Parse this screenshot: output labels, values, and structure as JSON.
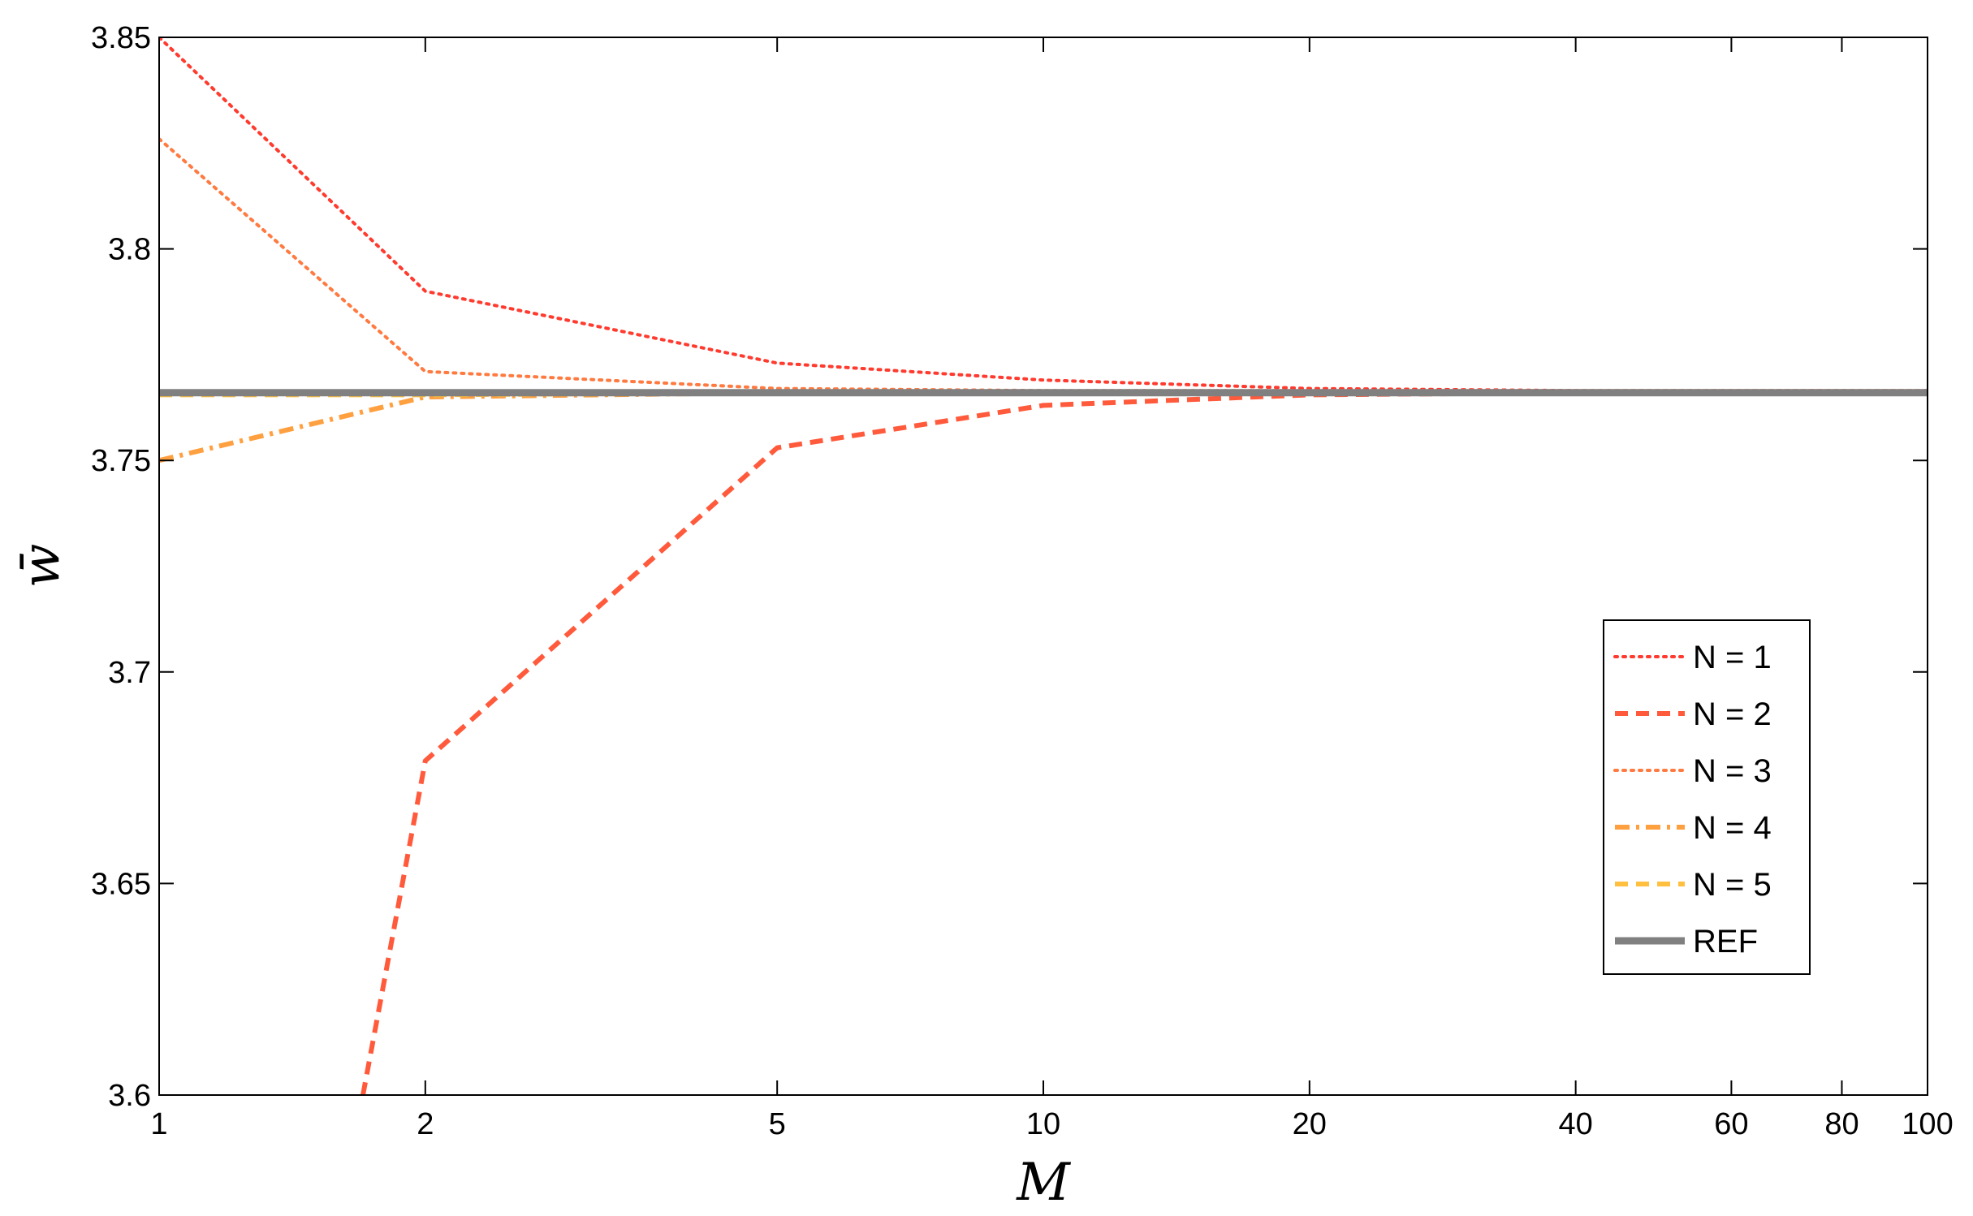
{
  "chart_data": {
    "type": "line",
    "title": "",
    "xlabel": "M",
    "ylabel": "w̄",
    "xscale": "log",
    "xlim": [
      1,
      100
    ],
    "ylim": [
      3.6,
      3.85
    ],
    "x_ticks": [
      1,
      2,
      5,
      10,
      20,
      40,
      60,
      80,
      100
    ],
    "x_tick_labels": [
      "1",
      "2",
      "5",
      "10",
      "20",
      "40",
      "60",
      "80",
      "100"
    ],
    "y_ticks": [
      3.6,
      3.65,
      3.7,
      3.75,
      3.8,
      3.85
    ],
    "y_tick_labels": [
      "3.6",
      "3.65",
      "3.7",
      "3.75",
      "3.8",
      "3.85"
    ],
    "grid": false,
    "legend_position": "right",
    "series": [
      {
        "name": "N = 1",
        "color": "#ff3a2e",
        "style": "dotted",
        "points": [
          [
            1,
            3.85
          ],
          [
            2,
            3.79
          ],
          [
            5,
            3.773
          ],
          [
            10,
            3.769
          ],
          [
            20,
            3.767
          ],
          [
            40,
            3.7665
          ],
          [
            100,
            3.7665
          ]
        ]
      },
      {
        "name": "N = 2",
        "color": "#ff5a3c",
        "style": "dashed",
        "points": [
          [
            1.7,
            3.6
          ],
          [
            2,
            3.679
          ],
          [
            5,
            3.753
          ],
          [
            10,
            3.763
          ],
          [
            20,
            3.7655
          ],
          [
            40,
            3.766
          ],
          [
            100,
            3.766
          ]
        ]
      },
      {
        "name": "N = 3",
        "color": "#ff7a40",
        "style": "dotted",
        "points": [
          [
            1,
            3.826
          ],
          [
            2,
            3.771
          ],
          [
            5,
            3.767
          ],
          [
            10,
            3.7665
          ],
          [
            100,
            3.7665
          ]
        ]
      },
      {
        "name": "N = 4",
        "color": "#ffa040",
        "style": "dashdot",
        "points": [
          [
            1,
            3.75
          ],
          [
            2,
            3.765
          ],
          [
            5,
            3.766
          ],
          [
            10,
            3.766
          ],
          [
            100,
            3.766
          ]
        ]
      },
      {
        "name": "N = 5",
        "color": "#ffc040",
        "style": "dashed",
        "points": [
          [
            1,
            3.7655
          ],
          [
            2,
            3.7655
          ],
          [
            5,
            3.766
          ],
          [
            10,
            3.766
          ],
          [
            100,
            3.766
          ]
        ]
      },
      {
        "name": "REF",
        "color": "#808080",
        "style": "solid",
        "points": [
          [
            1,
            3.766
          ],
          [
            100,
            3.766
          ]
        ]
      }
    ]
  }
}
